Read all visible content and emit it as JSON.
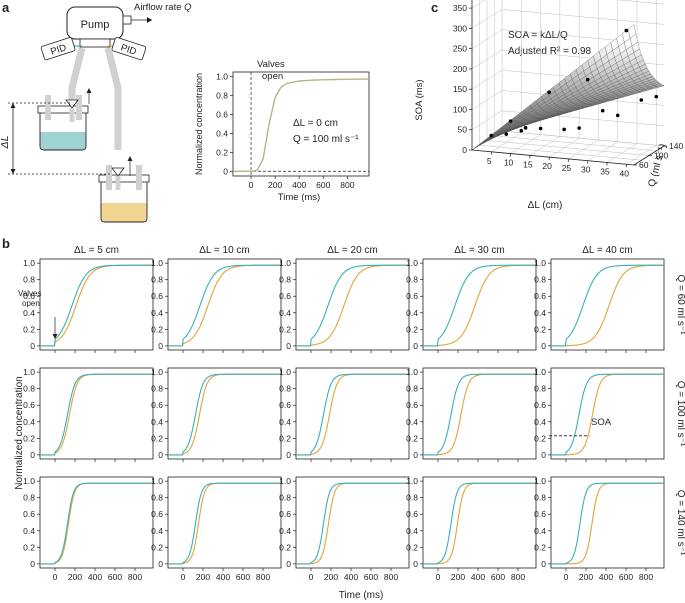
{
  "panels": {
    "a": {
      "letter": "a",
      "schematic": {
        "pump": "Pump",
        "airflow_prefix": "Airflow rate ",
        "airflow_var": "Q",
        "pid_left": "PID",
        "pid_right": "PID",
        "delta_l": "ΔL"
      },
      "chart": {
        "ylabel": "Normalized concentration",
        "xlabel": "Time (ms)",
        "annotation_valves": [
          "Valves",
          "open"
        ],
        "annotation_dl": "ΔL = 0 cm",
        "annotation_q": "Q = 100 ml s⁻¹",
        "xticks": [
          "0",
          "200",
          "400",
          "600",
          "800"
        ],
        "yticks": [
          "0",
          "0.2",
          "0.4",
          "0.6",
          "0.8",
          "1.0"
        ]
      }
    },
    "b": {
      "letter": "b",
      "col_titles": [
        "ΔL = 5 cm",
        "ΔL = 10 cm",
        "ΔL = 20 cm",
        "ΔL = 30 cm",
        "ΔL = 40 cm"
      ],
      "row_titles": [
        "Q = 60 ml s⁻¹",
        "Q = 100 ml s⁻¹",
        "Q = 140 ml s⁻¹"
      ],
      "ylabel": "Normalized concentration",
      "xlabel": "Time (ms)",
      "xticks": [
        "0",
        "200",
        "400",
        "600",
        "800"
      ],
      "yticks": [
        "0",
        "0.2",
        "0.4",
        "0.6",
        "0.8",
        "1.0"
      ],
      "annotation_valves": [
        "Valves",
        "open"
      ],
      "annotation_soa": "SOA"
    },
    "c": {
      "letter": "c",
      "formula": "SOA = kΔL/Q",
      "r2": "Adjusted R² = 0.98",
      "zlabel": "SOA (ms)",
      "xlabel": "ΔL (cm)",
      "ylabel": "Q (ml s⁻¹)",
      "zticks": [
        "0",
        "50",
        "100",
        "150",
        "200",
        "250",
        "300",
        "350"
      ],
      "xticks": [
        "5",
        "10",
        "15",
        "20",
        "25",
        "30",
        "35",
        "40"
      ],
      "yticks": [
        "60",
        "100",
        "140"
      ]
    }
  },
  "colors": {
    "teal": "#3bb0b6",
    "orange": "#e2a43a",
    "olive": "#b8b482",
    "axis": "#231f20",
    "liquid_teal": "#9fd3d2",
    "liquid_orange": "#f2d592"
  },
  "chart_data": [
    {
      "type": "line",
      "panel": "a",
      "xlabel": "Time (ms)",
      "ylabel": "Normalized concentration",
      "xlim": [
        -150,
        980
      ],
      "ylim": [
        -0.05,
        1.05
      ],
      "x": [
        -150,
        0,
        50,
        100,
        150,
        200,
        250,
        300,
        400,
        500,
        600,
        700,
        800,
        900,
        980
      ],
      "series": [
        {
          "values": [
            0,
            0,
            0.01,
            0.13,
            0.5,
            0.78,
            0.89,
            0.93,
            0.955,
            0.963,
            0.968,
            0.971,
            0.973,
            0.975,
            0.975
          ]
        }
      ]
    },
    {
      "type": "line",
      "panel": "b",
      "xlabel": "Time (ms)",
      "ylabel": "Normalized concentration",
      "xlim": [
        -150,
        980
      ],
      "ylim": [
        -0.05,
        1.05
      ],
      "params": {
        "t_teal": [
          [
            170,
            170,
            170,
            170,
            170
          ],
          [
            125,
            125,
            125,
            130,
            130
          ],
          [
            125,
            125,
            125,
            130,
            140
          ]
        ],
        "t_orange": [
          [
            210,
            250,
            330,
            370,
            430
          ],
          [
            145,
            165,
            185,
            230,
            265
          ],
          [
            135,
            155,
            175,
            195,
            260
          ]
        ],
        "tau": [
          [
            70,
            70,
            70,
            70,
            70
          ],
          [
            38,
            38,
            38,
            38,
            38
          ],
          [
            30,
            30,
            30,
            30,
            30
          ]
        ]
      }
    },
    {
      "type": "scatter",
      "panel": "c",
      "xlabel": "ΔL (cm)",
      "ylabel": "Q (ml s⁻¹)",
      "zlabel": "SOA (ms)",
      "xlim": [
        0,
        42
      ],
      "ylim": [
        60,
        140
      ],
      "zlim": [
        0,
        370
      ],
      "points": [
        [
          5,
          60,
          40
        ],
        [
          10,
          60,
          80
        ],
        [
          20,
          60,
          160
        ],
        [
          30,
          60,
          200
        ],
        [
          40,
          60,
          330
        ],
        [
          5,
          100,
          20
        ],
        [
          10,
          100,
          40
        ],
        [
          20,
          100,
          45
        ],
        [
          30,
          100,
          100
        ],
        [
          40,
          100,
          135
        ],
        [
          5,
          140,
          5
        ],
        [
          10,
          140,
          15
        ],
        [
          20,
          140,
          25
        ],
        [
          30,
          140,
          65
        ],
        [
          40,
          140,
          120
        ]
      ]
    }
  ]
}
